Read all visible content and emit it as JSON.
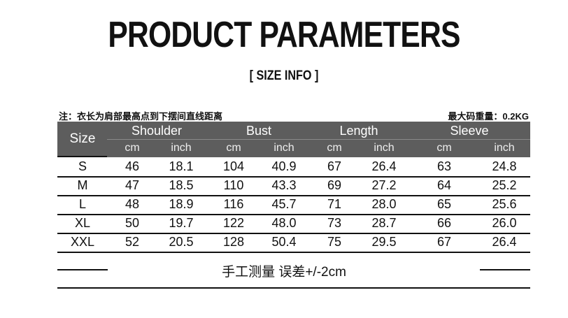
{
  "title": "PRODUCT PARAMETERS",
  "subtitle": "[ SIZE  INFO ]",
  "note_left": "注：衣长为肩部最高点到下摆间直线距离",
  "note_right": "最大码重量：0.2KG",
  "table": {
    "size_header": "Size",
    "groups": [
      "Shoulder",
      "Bust",
      "Length",
      "Sleeve"
    ],
    "units": [
      "cm",
      "inch",
      "cm",
      "inch",
      "cm",
      "inch",
      "cm",
      "inch"
    ],
    "rows": [
      [
        "S",
        "46",
        "18.1",
        "104",
        "40.9",
        "67",
        "26.4",
        "63",
        "24.8"
      ],
      [
        "M",
        "47",
        "18.5",
        "110",
        "43.3",
        "69",
        "27.2",
        "64",
        "25.2"
      ],
      [
        "L",
        "48",
        "18.9",
        "116",
        "45.7",
        "71",
        "28.0",
        "65",
        "25.6"
      ],
      [
        "XL",
        "50",
        "19.7",
        "122",
        "48.0",
        "73",
        "28.7",
        "66",
        "26.0"
      ],
      [
        "XXL",
        "52",
        "20.5",
        "128",
        "50.4",
        "75",
        "29.5",
        "67",
        "26.4"
      ]
    ],
    "header_color": "#5d5d5d"
  },
  "footer": "手工测量 误差+/-2cm"
}
